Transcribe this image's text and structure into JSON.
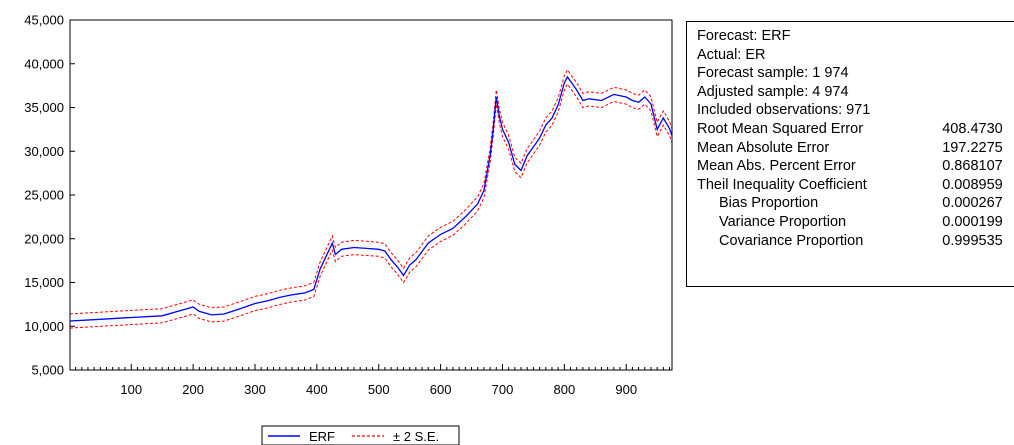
{
  "chart_data": {
    "type": "line",
    "xlim": [
      1,
      974
    ],
    "ylim": [
      5000,
      45000
    ],
    "x_ticks": [
      100,
      200,
      300,
      400,
      500,
      600,
      700,
      800,
      900
    ],
    "y_ticks": [
      5000,
      10000,
      15000,
      20000,
      25000,
      30000,
      35000,
      40000,
      45000
    ],
    "y_tick_labels": [
      "5,000",
      "10,000",
      "15,000",
      "20,000",
      "25,000",
      "30,000",
      "35,000",
      "40,000",
      "45,000"
    ],
    "grid": false,
    "legend_position": "bottom",
    "legend": [
      {
        "label": "ERF",
        "color": "#0000ff",
        "style": "solid"
      },
      {
        "label": "± 2 S.E.",
        "color": "#ff0000",
        "style": "dashed"
      }
    ],
    "band_width": 810,
    "series": [
      {
        "name": "ERF",
        "color": "#0000ff",
        "x": [
          1,
          50,
          100,
          150,
          180,
          200,
          210,
          230,
          250,
          280,
          300,
          320,
          340,
          360,
          380,
          395,
          405,
          415,
          425,
          430,
          440,
          460,
          480,
          500,
          510,
          520,
          530,
          540,
          550,
          560,
          580,
          600,
          620,
          640,
          660,
          670,
          680,
          685,
          690,
          695,
          700,
          710,
          720,
          730,
          740,
          750,
          760,
          770,
          780,
          790,
          800,
          805,
          810,
          820,
          830,
          840,
          860,
          880,
          900,
          910,
          920,
          930,
          940,
          950,
          960,
          970,
          974
        ],
        "y": [
          10600,
          10800,
          11000,
          11200,
          11800,
          12200,
          11700,
          11300,
          11400,
          12100,
          12600,
          12900,
          13300,
          13600,
          13800,
          14200,
          16500,
          18000,
          19500,
          18200,
          18800,
          19000,
          18900,
          18800,
          18600,
          17600,
          16800,
          15800,
          17000,
          17600,
          19500,
          20500,
          21200,
          22500,
          24000,
          25500,
          29500,
          32500,
          36200,
          34000,
          32500,
          31000,
          28500,
          27800,
          29500,
          30500,
          31500,
          33000,
          33800,
          35300,
          37800,
          38500,
          38000,
          37000,
          35800,
          36000,
          35800,
          36500,
          36200,
          35800,
          35600,
          36200,
          35400,
          32500,
          33800,
          32600,
          31800
        ]
      }
    ],
    "xlabel": "",
    "ylabel": ""
  },
  "stats": {
    "rows": [
      {
        "label": "Forecast: ERF",
        "value": "",
        "indent": false
      },
      {
        "label": "Actual: ER",
        "value": "",
        "indent": false
      },
      {
        "label": "Forecast sample: 1 974",
        "value": "",
        "indent": false
      },
      {
        "label": "Adjusted sample: 4 974",
        "value": "",
        "indent": false
      },
      {
        "label": "Included observations: 971",
        "value": "",
        "indent": false
      },
      {
        "label": "Root Mean Squared Error",
        "value": "408.4730",
        "indent": false
      },
      {
        "label": "Mean Absolute Error",
        "value": "197.2275",
        "indent": false
      },
      {
        "label": "Mean Abs. Percent Error",
        "value": "0.868107",
        "indent": false
      },
      {
        "label": "Theil Inequality Coefficient",
        "value": "0.008959",
        "indent": false
      },
      {
        "label": "Bias Proportion",
        "value": "0.000267",
        "indent": true
      },
      {
        "label": "Variance Proportion",
        "value": "0.000199",
        "indent": true
      },
      {
        "label": "Covariance Proportion",
        "value": "0.999535",
        "indent": true
      }
    ]
  }
}
